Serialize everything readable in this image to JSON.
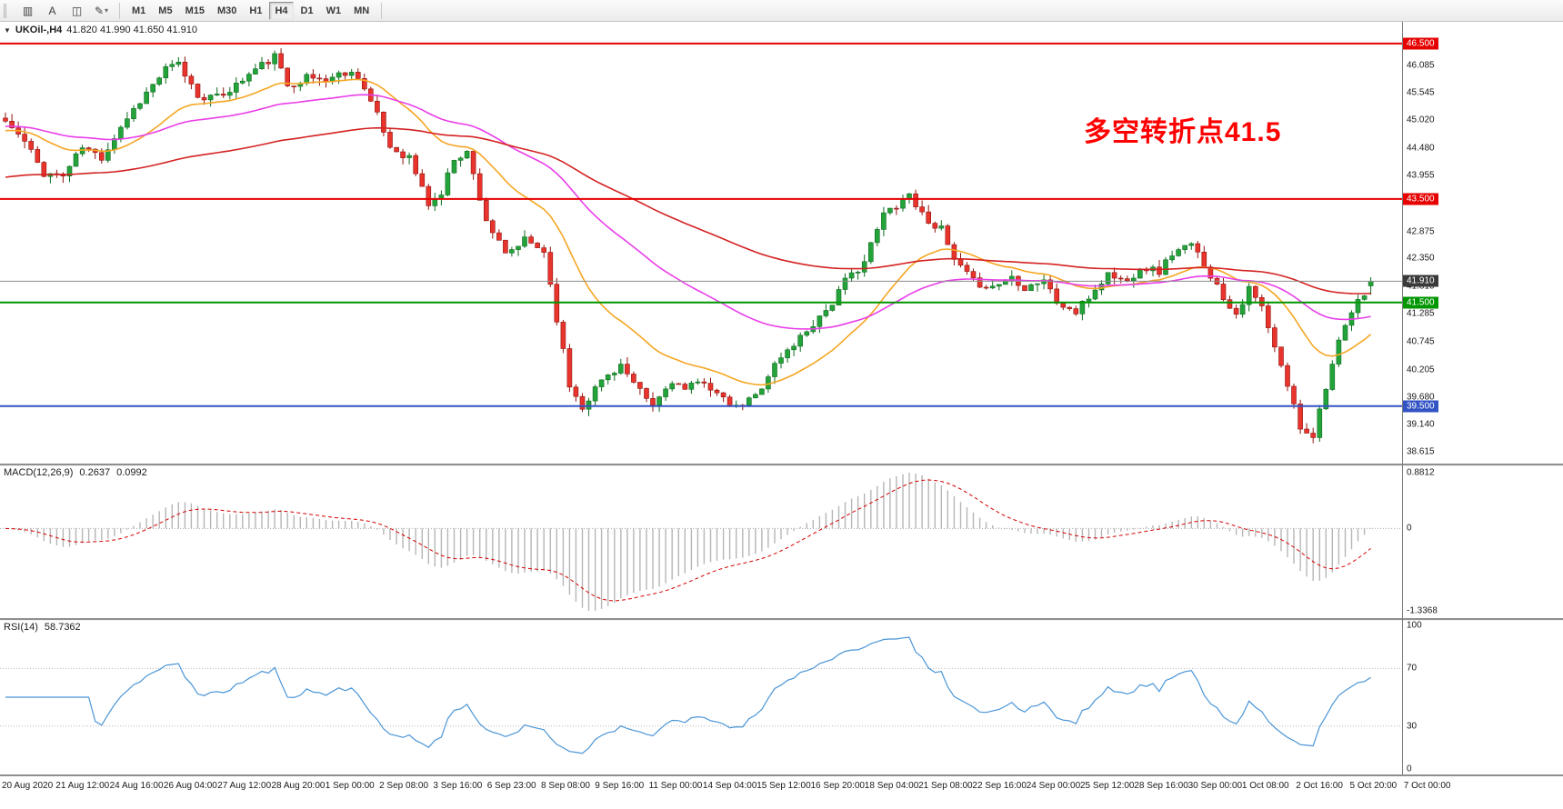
{
  "icons": {
    "symbol_caret": "▼",
    "dropdown_caret": "▾"
  },
  "toolbar": {
    "tools": [
      {
        "name": "chart-shift-icon",
        "glyph": "▥"
      },
      {
        "name": "text-label-tool",
        "glyph": "A"
      },
      {
        "name": "shapes-tool",
        "glyph": "◫"
      },
      {
        "name": "draw-arrows-tool",
        "glyph": "✎",
        "caret": true
      }
    ],
    "timeframes": [
      "M1",
      "M5",
      "M15",
      "M30",
      "H1",
      "H4",
      "D1",
      "W1",
      "MN"
    ],
    "active_timeframe": "H4"
  },
  "chart_data": {
    "type": "candlestick",
    "title": "UKOil-,H4",
    "symbol": "UKOil-",
    "timeframe": "H4",
    "quote": {
      "open": "41.820",
      "high": "41.990",
      "low": "41.650",
      "close": "41.910"
    },
    "quote_text": "41.820 41.990 41.650 41.910",
    "annotation": {
      "text": "多空转折点41.5",
      "color": "#ff0000"
    },
    "price_axis": {
      "view_min": 38.39,
      "view_max": 46.92,
      "labels": [
        "46.085",
        "45.545",
        "45.020",
        "44.480",
        "43.955",
        "42.875",
        "42.350",
        "41.810",
        "41.285",
        "40.745",
        "40.205",
        "39.680",
        "39.140",
        "38.615"
      ]
    },
    "hlines": [
      {
        "value": 46.5,
        "label": "46.500",
        "color": "#e60000"
      },
      {
        "value": 43.5,
        "label": "43.500",
        "color": "#e60000"
      },
      {
        "value": 41.5,
        "label": "41.500",
        "color": "#009600"
      },
      {
        "value": 39.5,
        "label": "39.500",
        "color": "#3253c4"
      }
    ],
    "current_price": {
      "value": 41.91,
      "label": "41.910",
      "line_color": "#8c8c8c",
      "badge_color": "#3a3a3a"
    },
    "candles": {
      "count": 214,
      "seed": 11,
      "noise": 0.16,
      "wick": 0.14,
      "up_color": "#23a33a",
      "up_edge": "#0c6b1d",
      "down_color": "#e8342c",
      "down_edge": "#8f120d",
      "waypoints": [
        [
          0,
          45.0
        ],
        [
          3,
          44.6
        ],
        [
          6,
          44.0
        ],
        [
          9,
          43.95
        ],
        [
          12,
          44.5
        ],
        [
          15,
          44.3
        ],
        [
          18,
          44.9
        ],
        [
          21,
          45.4
        ],
        [
          25,
          46.0
        ],
        [
          27,
          46.1
        ],
        [
          30,
          45.5
        ],
        [
          33,
          45.45
        ],
        [
          36,
          45.7
        ],
        [
          39,
          46.0
        ],
        [
          42,
          46.25
        ],
        [
          44,
          45.7
        ],
        [
          47,
          45.85
        ],
        [
          50,
          45.8
        ],
        [
          53,
          45.95
        ],
        [
          55,
          45.9
        ],
        [
          58,
          45.1
        ],
        [
          60,
          44.5
        ],
        [
          63,
          44.3
        ],
        [
          66,
          43.4
        ],
        [
          68,
          43.6
        ],
        [
          70,
          44.3
        ],
        [
          72,
          44.4
        ],
        [
          75,
          43.1
        ],
        [
          78,
          42.4
        ],
        [
          81,
          42.7
        ],
        [
          84,
          42.5
        ],
        [
          86,
          41.2
        ],
        [
          88,
          39.9
        ],
        [
          90,
          39.5
        ],
        [
          93,
          40.0
        ],
        [
          96,
          40.3
        ],
        [
          98,
          39.9
        ],
        [
          101,
          39.5
        ],
        [
          104,
          40.0
        ],
        [
          106,
          39.8
        ],
        [
          109,
          40.0
        ],
        [
          112,
          39.6
        ],
        [
          114,
          39.45
        ],
        [
          117,
          39.7
        ],
        [
          120,
          40.3
        ],
        [
          123,
          40.7
        ],
        [
          126,
          41.1
        ],
        [
          129,
          41.5
        ],
        [
          131,
          41.9
        ],
        [
          134,
          42.3
        ],
        [
          137,
          43.2
        ],
        [
          139,
          43.4
        ],
        [
          141,
          43.6
        ],
        [
          143,
          43.2
        ],
        [
          146,
          42.9
        ],
        [
          148,
          42.3
        ],
        [
          151,
          41.9
        ],
        [
          154,
          41.8
        ],
        [
          157,
          42.0
        ],
        [
          159,
          41.8
        ],
        [
          162,
          41.95
        ],
        [
          164,
          41.5
        ],
        [
          167,
          41.3
        ],
        [
          170,
          41.75
        ],
        [
          172,
          42.05
        ],
        [
          175,
          41.9
        ],
        [
          177,
          42.2
        ],
        [
          180,
          42.1
        ],
        [
          182,
          42.45
        ],
        [
          185,
          42.6
        ],
        [
          187,
          42.25
        ],
        [
          190,
          41.6
        ],
        [
          192,
          41.3
        ],
        [
          194,
          41.75
        ],
        [
          196,
          41.4
        ],
        [
          198,
          40.6
        ],
        [
          200,
          39.9
        ],
        [
          202,
          39.1
        ],
        [
          204,
          38.95
        ],
        [
          206,
          39.9
        ],
        [
          208,
          40.7
        ],
        [
          210,
          41.3
        ],
        [
          212,
          41.7
        ],
        [
          213,
          41.91
        ]
      ]
    },
    "moving_averages": [
      {
        "name": "ma-fast-orange",
        "period": 21,
        "seed": 44.8,
        "color": "#f5a623"
      },
      {
        "name": "ma-mid-magenta",
        "period": 55,
        "seed": 44.9,
        "color": "#e93ee9"
      },
      {
        "name": "ma-slow-red",
        "period": 120,
        "seed": 43.9,
        "color": "#d42222"
      }
    ],
    "macd": {
      "label": "MACD(12,26,9)",
      "value_main": "0.2637",
      "value_signal": "0.0992",
      "fast": 12,
      "slow": 26,
      "signal": 9,
      "scale_top": "0.8812",
      "scale_zero": "0",
      "scale_bottom": "-1.3368",
      "hist_color": "#b6b6b6",
      "signal_color": "#d40000"
    },
    "rsi": {
      "label": "RSI(14)",
      "value": "58.7362",
      "period": 14,
      "levels": [
        70,
        30
      ],
      "scale": [
        "100",
        "70",
        "30",
        "0"
      ],
      "line_color": "#4a95d6"
    },
    "time_labels": [
      "20 Aug 2020",
      "21 Aug 12:00",
      "24 Aug 16:00",
      "26 Aug 04:00",
      "27 Aug 12:00",
      "28 Aug 20:00",
      "1 Sep 00:00",
      "2 Sep 08:00",
      "3 Sep 16:00",
      "6 Sep 23:00",
      "8 Sep 08:00",
      "9 Sep 16:00",
      "11 Sep 00:00",
      "14 Sep 04:00",
      "15 Sep 12:00",
      "16 Sep 20:00",
      "18 Sep 04:00",
      "21 Sep 08:00",
      "22 Sep 16:00",
      "24 Sep 00:00",
      "25 Sep 12:00",
      "28 Sep 16:00",
      "30 Sep 00:00",
      "1 Oct 08:00",
      "2 Oct 16:00",
      "5 Oct 20:00",
      "7 Oct 00:00"
    ]
  }
}
